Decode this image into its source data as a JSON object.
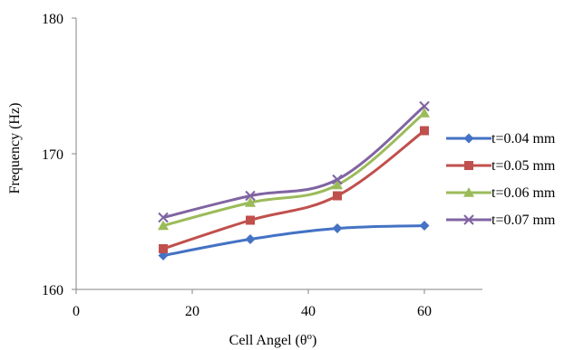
{
  "chart_data": {
    "type": "line",
    "title": "",
    "xlabel": "Cell Angel (θ",
    "xlabel_sup": "o",
    "xlabel_close": ")",
    "ylabel": "Frequency (Hz)",
    "xlim": [
      0,
      70
    ],
    "ylim": [
      160,
      180
    ],
    "x_ticks": [
      0,
      20,
      40,
      60
    ],
    "y_ticks": [
      160,
      170,
      180
    ],
    "grid": false,
    "legend_position": "right",
    "x": [
      15,
      30,
      45,
      60
    ],
    "series": [
      {
        "name": "t=0.04 mm",
        "values": [
          162.5,
          163.7,
          164.5,
          164.7
        ],
        "color": "#4472C4",
        "marker": "diamond"
      },
      {
        "name": "t=0.05 mm",
        "values": [
          163.0,
          165.1,
          166.9,
          171.7
        ],
        "color": "#C0504D",
        "marker": "square"
      },
      {
        "name": "t=0.06 mm",
        "values": [
          164.7,
          166.4,
          167.7,
          173.0
        ],
        "color": "#9BBB59",
        "marker": "triangle"
      },
      {
        "name": "t=0.07 mm",
        "values": [
          165.3,
          166.9,
          168.1,
          173.5
        ],
        "color": "#8064A2",
        "marker": "x"
      }
    ]
  }
}
